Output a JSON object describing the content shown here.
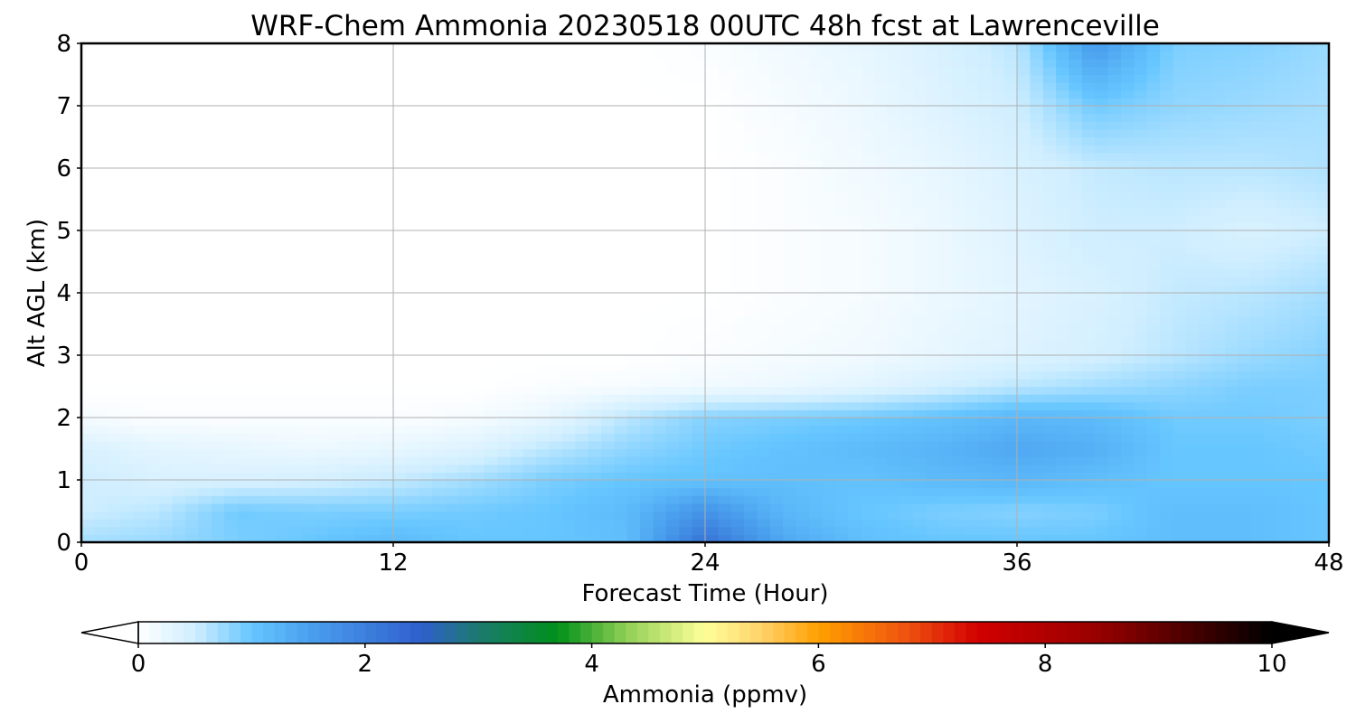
{
  "chart_data": {
    "type": "heatmap",
    "title": "WRF-Chem Ammonia  20230518 00UTC 48h fcst at Lawrenceville",
    "xlabel": "Forecast Time (Hour)",
    "ylabel": "Alt AGL (km)",
    "xlim": [
      0,
      48
    ],
    "ylim": [
      0,
      8
    ],
    "xticks": [
      0,
      12,
      24,
      36,
      48
    ],
    "yticks": [
      0,
      1,
      2,
      3,
      4,
      5,
      6,
      7,
      8
    ],
    "grid": true,
    "x": [
      0,
      3,
      6,
      9,
      12,
      15,
      18,
      21,
      24,
      27,
      30,
      33,
      36,
      39,
      42,
      45,
      48
    ],
    "y": [
      0,
      0.5,
      1,
      1.5,
      2,
      2.5,
      3,
      4,
      5,
      6,
      7,
      8
    ],
    "z": [
      [
        0.7,
        0.75,
        0.9,
        1.0,
        1.15,
        1.0,
        1.0,
        1.1,
        2.2,
        1.4,
        1.1,
        1.0,
        1.0,
        1.0,
        1.1,
        1.1,
        1.0
      ],
      [
        0.5,
        0.6,
        0.95,
        0.9,
        0.9,
        0.95,
        1.0,
        1.15,
        1.7,
        1.2,
        1.0,
        0.9,
        0.85,
        0.9,
        1.1,
        1.1,
        1.0
      ],
      [
        0.5,
        0.4,
        0.4,
        0.45,
        0.55,
        0.7,
        0.9,
        1.0,
        1.05,
        1.1,
        1.05,
        1.15,
        1.2,
        1.1,
        1.0,
        1.0,
        1.0
      ],
      [
        0.4,
        0.3,
        0.25,
        0.2,
        0.25,
        0.35,
        0.6,
        0.8,
        0.95,
        1.05,
        1.15,
        1.25,
        1.4,
        1.3,
        1.0,
        1.0,
        0.95
      ],
      [
        0.1,
        0.05,
        0.05,
        0.05,
        0.05,
        0.1,
        0.25,
        0.6,
        0.85,
        0.9,
        0.95,
        1.05,
        1.2,
        1.15,
        0.95,
        0.95,
        0.9
      ],
      [
        0.0,
        0.0,
        0.0,
        0.0,
        0.0,
        0.0,
        0.05,
        0.1,
        0.15,
        0.2,
        0.3,
        0.45,
        0.6,
        0.7,
        0.8,
        0.9,
        0.9
      ],
      [
        0.0,
        0.0,
        0.0,
        0.0,
        0.0,
        0.0,
        0.0,
        0.0,
        0.05,
        0.1,
        0.15,
        0.25,
        0.35,
        0.45,
        0.6,
        0.75,
        0.85
      ],
      [
        0.0,
        0.0,
        0.0,
        0.0,
        0.0,
        0.0,
        0.0,
        0.0,
        0.0,
        0.05,
        0.1,
        0.2,
        0.3,
        0.4,
        0.55,
        0.6,
        0.7
      ],
      [
        0.0,
        0.0,
        0.0,
        0.0,
        0.0,
        0.0,
        0.0,
        0.0,
        0.0,
        0.05,
        0.1,
        0.2,
        0.35,
        0.5,
        0.5,
        0.4,
        0.5
      ],
      [
        0.0,
        0.0,
        0.0,
        0.0,
        0.0,
        0.0,
        0.0,
        0.0,
        0.0,
        0.05,
        0.15,
        0.25,
        0.4,
        0.55,
        0.6,
        0.6,
        0.65
      ],
      [
        0.0,
        0.0,
        0.0,
        0.0,
        0.0,
        0.0,
        0.0,
        0.0,
        0.0,
        0.1,
        0.2,
        0.35,
        0.5,
        0.95,
        0.8,
        0.75,
        0.7
      ],
      [
        0.0,
        0.0,
        0.0,
        0.0,
        0.0,
        0.0,
        0.0,
        0.0,
        0.05,
        0.15,
        0.25,
        0.4,
        0.6,
        1.6,
        0.9,
        0.85,
        0.75
      ]
    ],
    "colorbar": {
      "label": "Ammonia  (ppmv)",
      "min": 0,
      "max": 10,
      "ticks": [
        0,
        2,
        4,
        6,
        8,
        10
      ],
      "extend": "both",
      "stops": [
        {
          "v": 0.0,
          "c": "#ffffff"
        },
        {
          "v": 0.5,
          "c": "#cfeeff"
        },
        {
          "v": 1.0,
          "c": "#66c6ff"
        },
        {
          "v": 1.5,
          "c": "#4aa0ee"
        },
        {
          "v": 2.5,
          "c": "#2f5fcc"
        },
        {
          "v": 3.0,
          "c": "#1c7a6e"
        },
        {
          "v": 3.7,
          "c": "#00901a"
        },
        {
          "v": 4.3,
          "c": "#8fcf55"
        },
        {
          "v": 5.0,
          "c": "#ffff99"
        },
        {
          "v": 5.5,
          "c": "#ffd26a"
        },
        {
          "v": 6.0,
          "c": "#ffa000"
        },
        {
          "v": 6.8,
          "c": "#ee5010"
        },
        {
          "v": 7.4,
          "c": "#d20000"
        },
        {
          "v": 8.5,
          "c": "#960000"
        },
        {
          "v": 10.0,
          "c": "#000000"
        }
      ]
    }
  }
}
